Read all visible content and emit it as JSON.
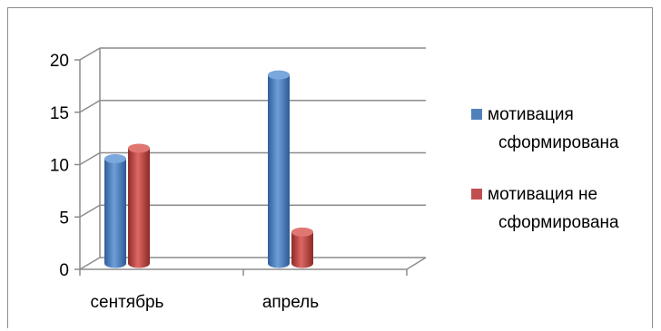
{
  "chart_data": {
    "type": "bar",
    "categories": [
      "сентябрь",
      "апрель"
    ],
    "series": [
      {
        "name": "мотивация сформирована",
        "values": [
          10,
          18
        ],
        "color": "#4f81bd"
      },
      {
        "name": "мотивация не сформирована",
        "values": [
          11,
          3
        ],
        "color": "#c0504d"
      }
    ],
    "yticks": [
      0,
      5,
      10,
      15,
      20
    ],
    "ylim": [
      0,
      20
    ],
    "grid": true,
    "legend_position": "right",
    "legend_lines": [
      [
        "мотивация",
        "сформирована"
      ],
      [
        "мотивация не",
        "сформирована"
      ]
    ]
  }
}
